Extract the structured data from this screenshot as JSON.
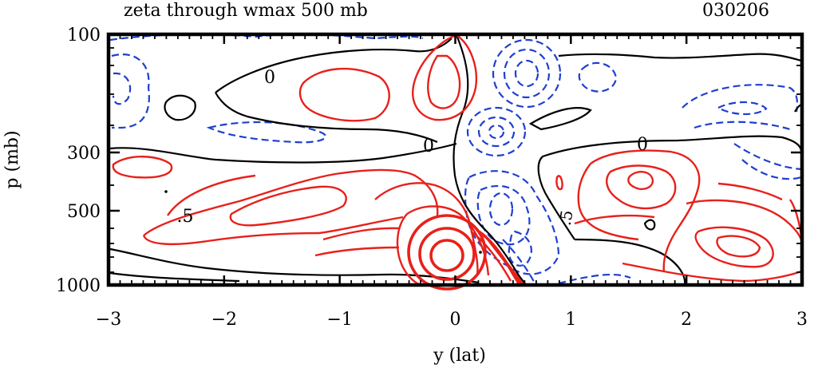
{
  "chart_data": {
    "type": "contour",
    "title": "zeta through wmax 500 mb",
    "date_label": "030206",
    "xlabel": "y (lat)",
    "ylabel": "p (mb)",
    "xlim": [
      -3,
      3
    ],
    "x_ticks": [
      -3,
      -2,
      -1,
      0,
      1,
      2,
      3
    ],
    "x_tick_labels": [
      "−3",
      "−2",
      "−1",
      "0",
      "1",
      "2",
      "3"
    ],
    "y_ticks": [
      100,
      300,
      500,
      1000
    ],
    "y_tick_labels": [
      "100",
      "300",
      "500",
      "1000"
    ],
    "contour_labels": [
      "0",
      "0",
      "0",
      ".5",
      ".5"
    ],
    "colors": {
      "positive": "#e8201a",
      "negative": "#1f3fd0",
      "zero": "#000000",
      "frame": "#000000"
    }
  }
}
